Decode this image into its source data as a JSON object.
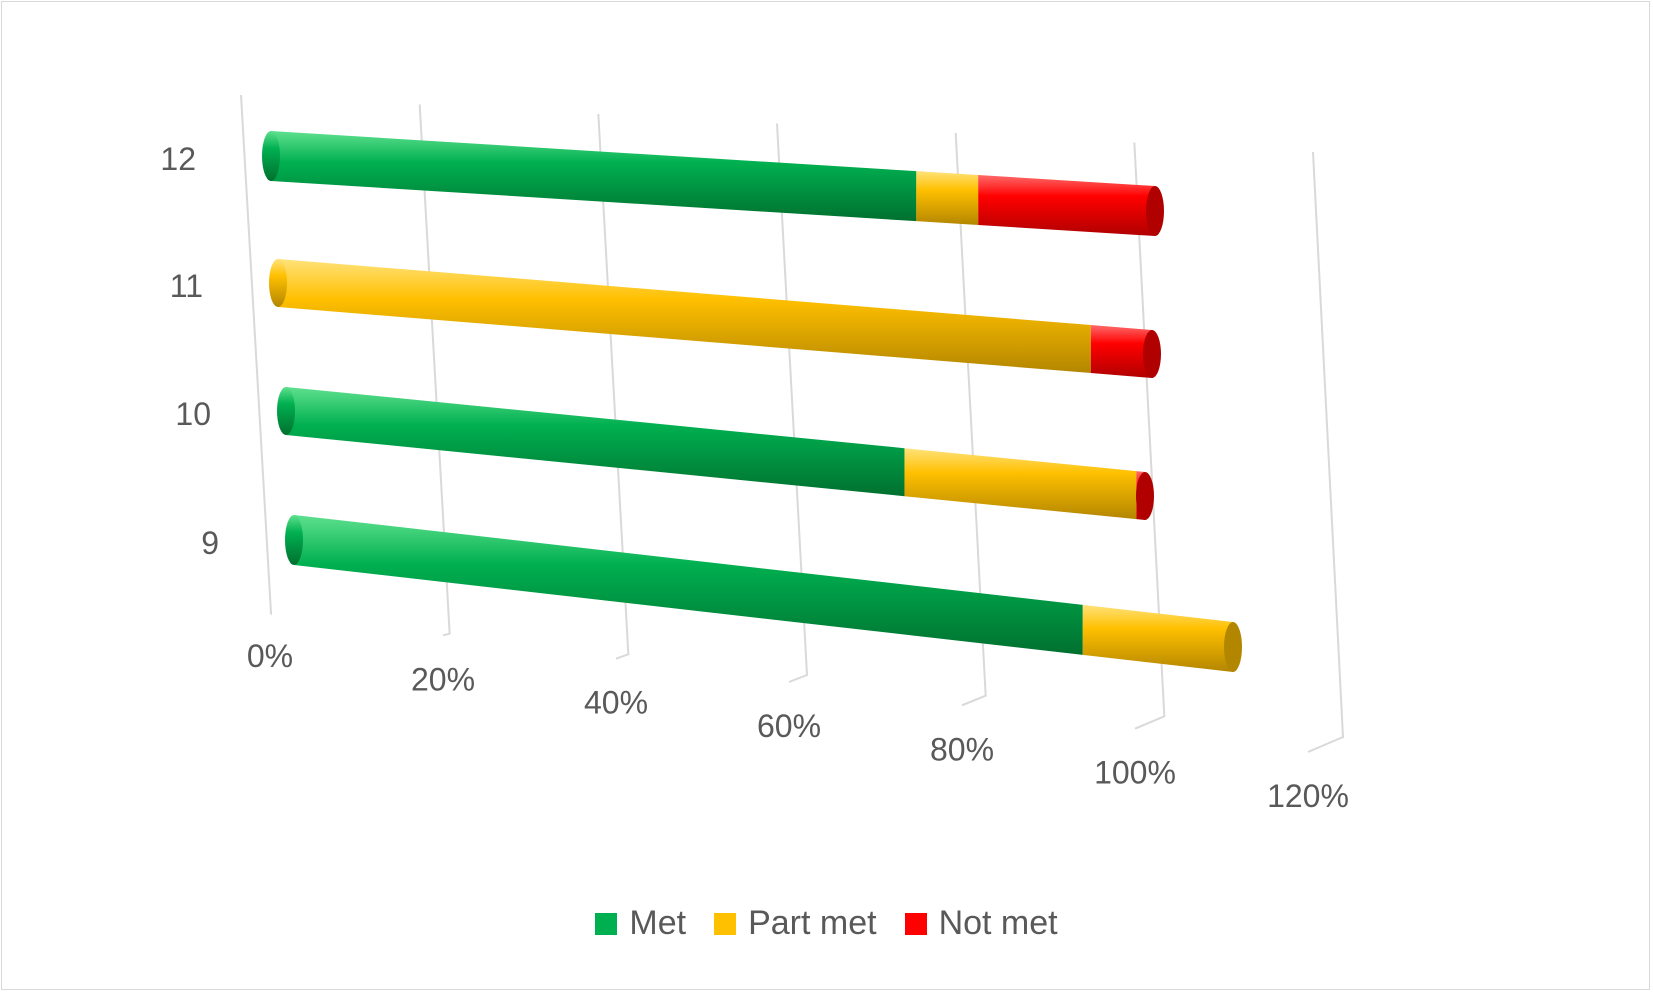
{
  "chart_data": {
    "type": "bar",
    "orientation": "horizontal",
    "stacked": true,
    "percent": true,
    "style": "3d-cylinder",
    "categories": [
      "9",
      "10",
      "11",
      "12"
    ],
    "series": [
      {
        "name": "Met",
        "color": "#00b050",
        "values": [
          0.84,
          0.72,
          0.0,
          0.73
        ]
      },
      {
        "name": "Part met",
        "color": "#ffc000",
        "values": [
          0.16,
          0.27,
          0.93,
          0.07
        ]
      },
      {
        "name": "Not met",
        "color": "#ff0000",
        "values": [
          0.0,
          0.01,
          0.07,
          0.2
        ]
      }
    ],
    "xticks": [
      "0%",
      "20%",
      "40%",
      "60%",
      "80%",
      "100%",
      "120%"
    ],
    "xlim": [
      0,
      1.2
    ],
    "grid": true,
    "legend": "bottom"
  }
}
